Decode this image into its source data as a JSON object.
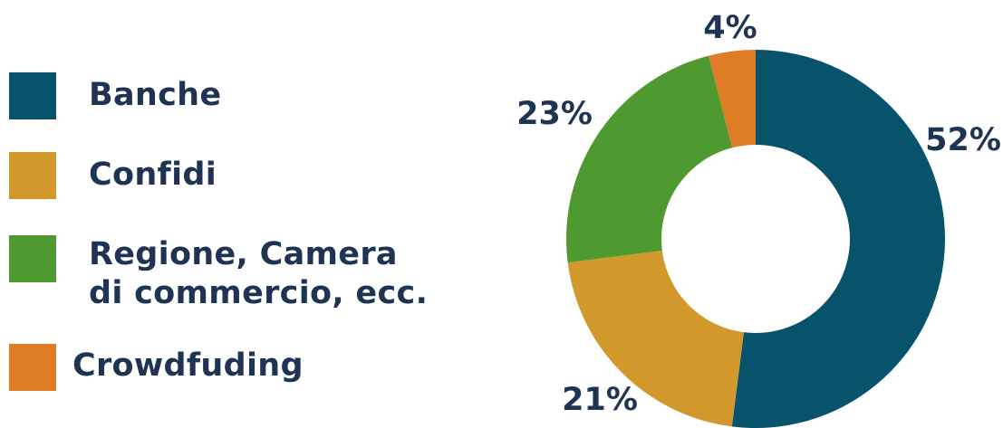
{
  "chart_data": {
    "type": "pie",
    "donut": true,
    "categories": [
      "Banche",
      "Confidi",
      "Regione, Camera\ndi commercio, ecc.",
      "Crowdfuding"
    ],
    "values": [
      52,
      21,
      23,
      4
    ],
    "value_labels": [
      "52%",
      "21%",
      "23%",
      "4%"
    ],
    "colors": [
      "#07536b",
      "#d3982b",
      "#4e9a31",
      "#df7c26"
    ],
    "legend_placement": "left",
    "title": ""
  }
}
